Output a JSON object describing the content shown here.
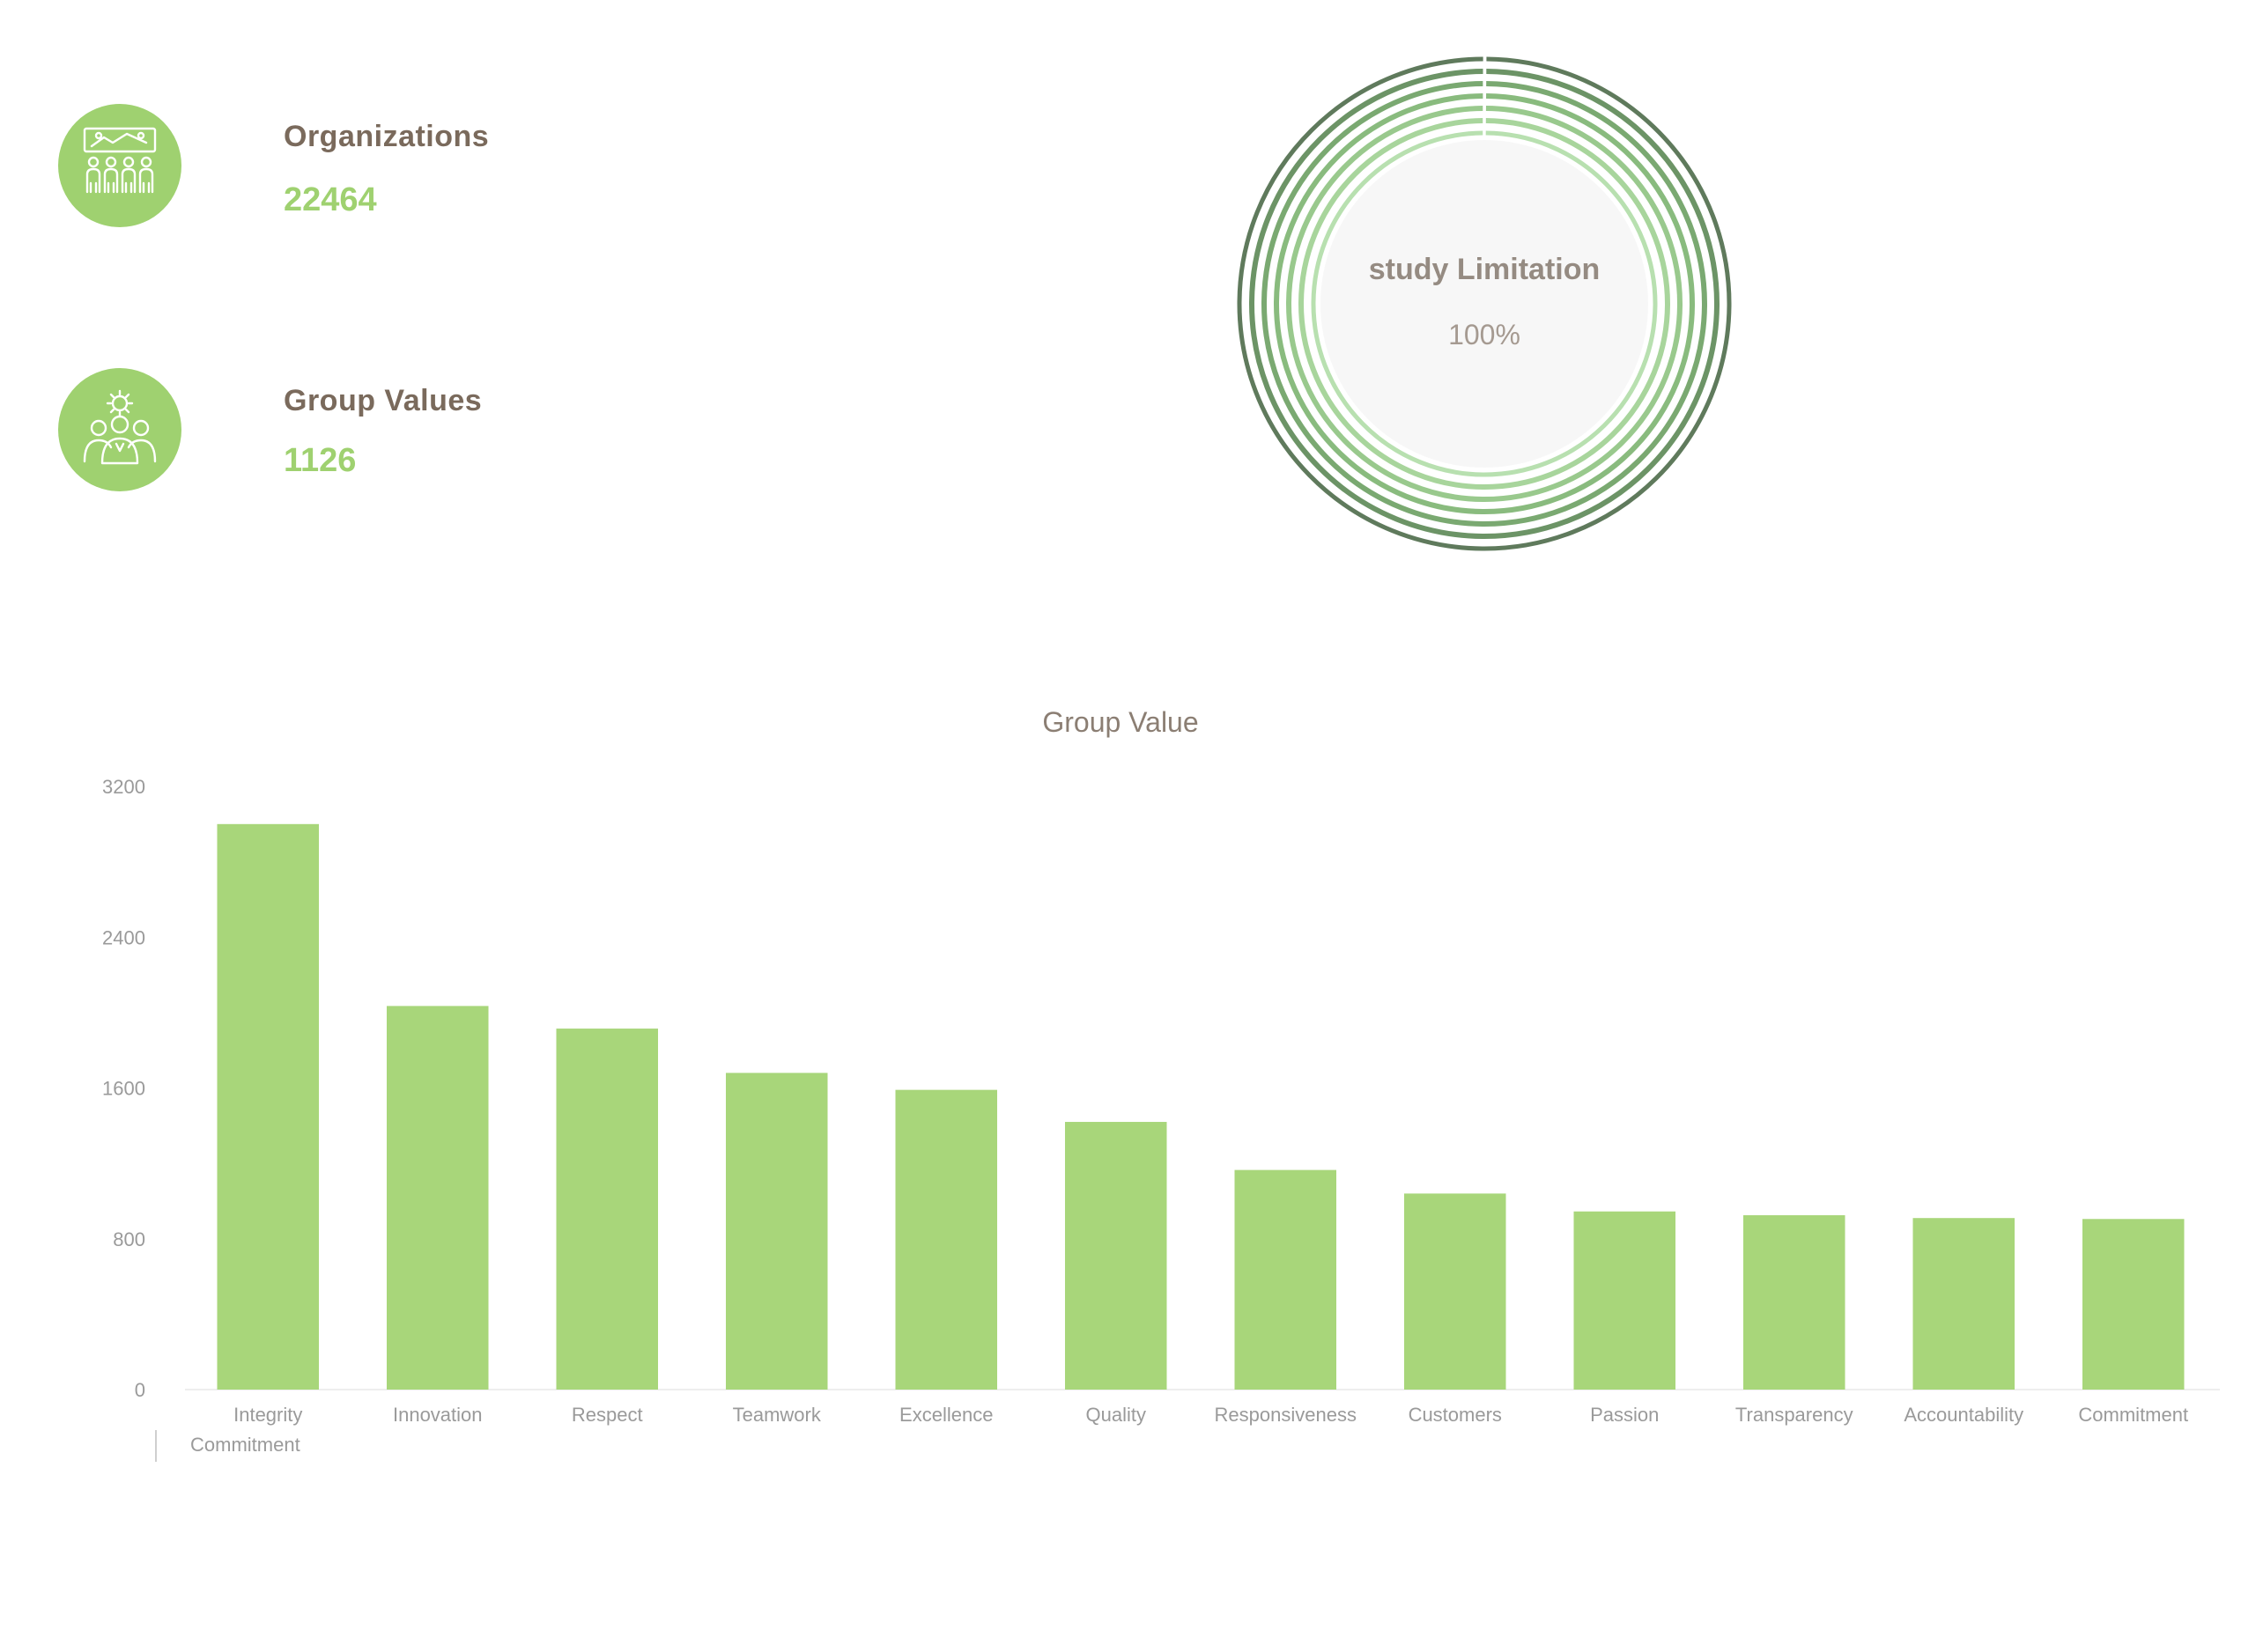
{
  "kpis": [
    {
      "label": "Organizations",
      "value": "22464",
      "icon": "organization-people-icon"
    },
    {
      "label": "Group Values",
      "value": "1126",
      "icon": "group-values-people-icon"
    }
  ],
  "gauge": {
    "title": "study Limitation",
    "value": "100%",
    "percent": 100
  },
  "colors": {
    "accent": "#9fd170",
    "bar": "#a8d67a",
    "text_brown": "#7a6a5c",
    "ring_shades": [
      "#5f7a5c",
      "#6c9466",
      "#7aa971",
      "#89bb7e",
      "#99c98d",
      "#a8d59c",
      "#b8e0b0"
    ]
  },
  "legend": {
    "label": "Commitment"
  },
  "chart_data": {
    "type": "bar",
    "title": "Group Value",
    "categories": [
      "Integrity",
      "Innovation",
      "Respect",
      "Teamwork",
      "Excellence",
      "Quality",
      "Responsiveness",
      "Customers",
      "Passion",
      "Transparency",
      "Accountability",
      "Commitment"
    ],
    "values": [
      3000,
      2035,
      1915,
      1680,
      1590,
      1420,
      1165,
      1040,
      945,
      925,
      910,
      905
    ],
    "yticks": [
      0,
      800,
      1600,
      2400,
      3200
    ],
    "ylim": [
      0,
      3200
    ],
    "xlabel": "",
    "ylabel": "",
    "grid": false
  }
}
